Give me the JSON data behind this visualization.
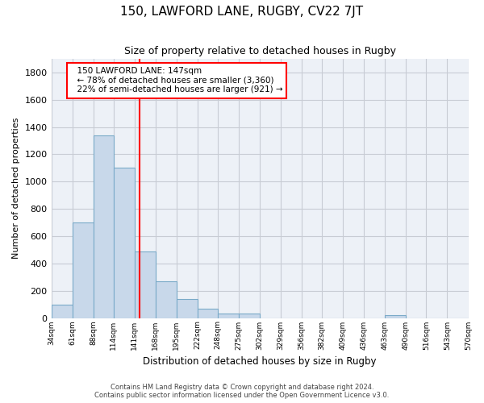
{
  "title": "150, LAWFORD LANE, RUGBY, CV22 7JT",
  "subtitle": "Size of property relative to detached houses in Rugby",
  "xlabel": "Distribution of detached houses by size in Rugby",
  "ylabel": "Number of detached properties",
  "bar_color": "#c8d8ea",
  "bar_edge_color": "#7aaac8",
  "grid_color": "#c8ccd4",
  "bg_color": "#edf1f7",
  "annotation_line_color": "red",
  "annotation_text": "  150 LAWFORD LANE: 147sqm\n  ← 78% of detached houses are smaller (3,360)\n  22% of semi-detached houses are larger (921) →",
  "property_size": 147,
  "footer_line1": "Contains HM Land Registry data © Crown copyright and database right 2024.",
  "footer_line2": "Contains public sector information licensed under the Open Government Licence v3.0.",
  "bin_edges": [
    34,
    61,
    88,
    114,
    141,
    168,
    195,
    222,
    248,
    275,
    302,
    329,
    356,
    382,
    409,
    436,
    463,
    490,
    516,
    543,
    570
  ],
  "bin_labels": [
    "34sqm",
    "61sqm",
    "88sqm",
    "114sqm",
    "141sqm",
    "168sqm",
    "195sqm",
    "222sqm",
    "248sqm",
    "275sqm",
    "302sqm",
    "329sqm",
    "356sqm",
    "382sqm",
    "409sqm",
    "436sqm",
    "463sqm",
    "490sqm",
    "516sqm",
    "543sqm",
    "570sqm"
  ],
  "counts": [
    100,
    700,
    1340,
    1100,
    490,
    270,
    140,
    70,
    35,
    35,
    0,
    0,
    0,
    0,
    0,
    0,
    20,
    0,
    0,
    0,
    0
  ],
  "ylim": [
    0,
    1900
  ],
  "yticks": [
    0,
    200,
    400,
    600,
    800,
    1000,
    1200,
    1400,
    1600,
    1800
  ]
}
